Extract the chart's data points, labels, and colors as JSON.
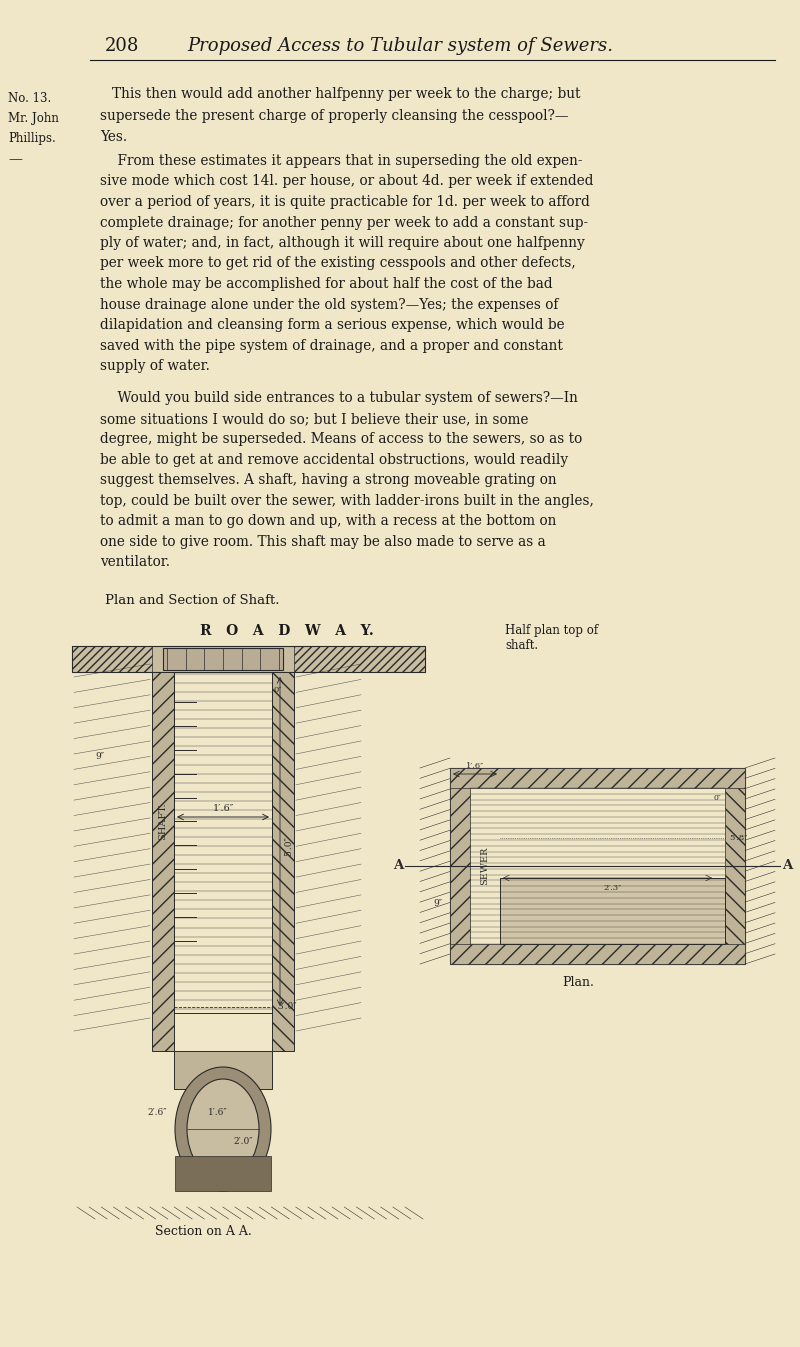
{
  "background_color": "#f0e6c8",
  "page_width": 8.0,
  "page_height": 13.47,
  "header_page_num": "208",
  "header_title": "Proposed Access to Tubular system of Sewers.",
  "left_margin_line1": "No. 13.",
  "left_margin_line2": "Mr. John",
  "left_margin_line3": "Phillips.",
  "left_margin_line4": "—",
  "diagram_title": "Plan and Section of Shaft.",
  "roadway_label": "R   O   A   D   W   A   Y.",
  "half_plan_label": "Half plan top of\nshaft.",
  "plan_label": "Plan.",
  "section_label": "Section on A A.",
  "text_color": "#1a1a1a",
  "drawing_color": "#2a2a2a"
}
